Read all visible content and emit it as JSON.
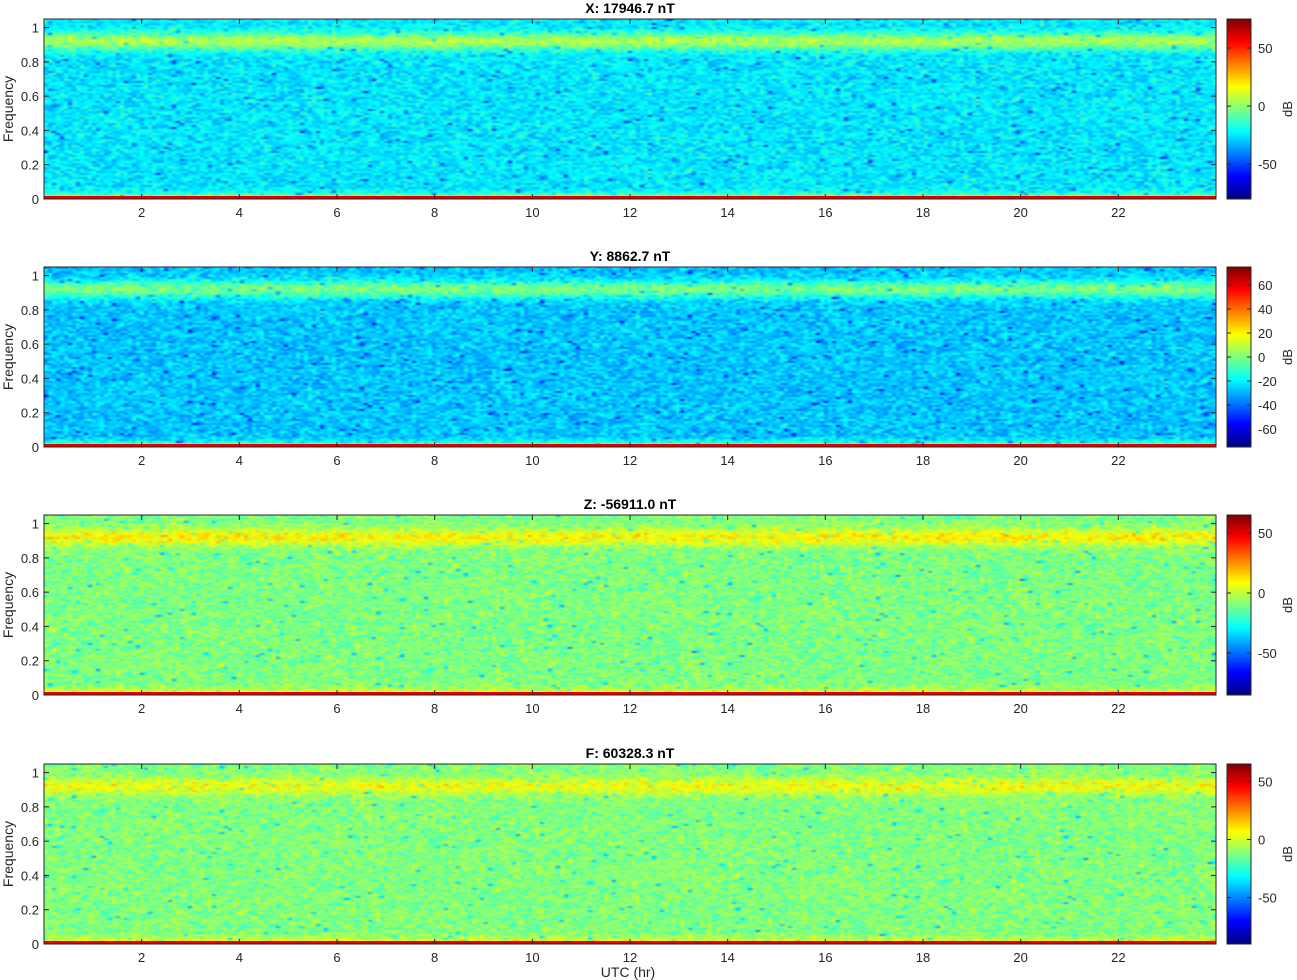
{
  "figure": {
    "xlabel": "UTC (hr)"
  },
  "chart_data": [
    {
      "type": "heatmap",
      "title": "X: 17946.7 nT",
      "xlabel": "",
      "ylabel": "Frequency",
      "colorbar_label": "dB",
      "colormap": "jet",
      "xlim": [
        0,
        24
      ],
      "ylim": [
        0,
        1.05
      ],
      "xticks": [
        2,
        4,
        6,
        8,
        10,
        12,
        14,
        16,
        18,
        20,
        22
      ],
      "yticks": [
        0,
        0.2,
        0.4,
        0.6,
        0.8,
        1
      ],
      "clim": [
        -80,
        75
      ],
      "cticks": [
        50,
        0,
        -50
      ],
      "background_db": -25,
      "band_0p9_db": 5,
      "low_freq_db": 60
    },
    {
      "type": "heatmap",
      "title": "Y: 8862.7 nT",
      "xlabel": "",
      "ylabel": "Frequency",
      "colorbar_label": "dB",
      "colormap": "jet",
      "xlim": [
        0,
        24
      ],
      "ylim": [
        0,
        1.05
      ],
      "xticks": [
        2,
        4,
        6,
        8,
        10,
        12,
        14,
        16,
        18,
        20,
        22
      ],
      "yticks": [
        0,
        0.2,
        0.4,
        0.6,
        0.8,
        1
      ],
      "clim": [
        -75,
        75
      ],
      "cticks": [
        60,
        40,
        20,
        0,
        -20,
        -40,
        -60
      ],
      "background_db": -27,
      "band_0p9_db": 0,
      "low_freq_db": 60
    },
    {
      "type": "heatmap",
      "title": "Z: -56911.0 nT",
      "xlabel": "",
      "ylabel": "Frequency",
      "colorbar_label": "dB",
      "colormap": "jet",
      "xlim": [
        0,
        24
      ],
      "ylim": [
        0,
        1.05
      ],
      "xticks": [
        2,
        4,
        6,
        8,
        10,
        12,
        14,
        16,
        18,
        20,
        22
      ],
      "yticks": [
        0,
        0.2,
        0.4,
        0.6,
        0.8,
        1
      ],
      "clim": [
        -85,
        65
      ],
      "cticks": [
        50,
        0,
        -50
      ],
      "background_db": -10,
      "band_0p9_db": 10,
      "low_freq_db": 50
    },
    {
      "type": "heatmap",
      "title": "F: 60328.3 nT",
      "xlabel": "",
      "ylabel": "Frequency",
      "colorbar_label": "dB",
      "colormap": "jet",
      "xlim": [
        0,
        24
      ],
      "ylim": [
        0,
        1.05
      ],
      "xticks": [
        2,
        4,
        6,
        8,
        10,
        12,
        14,
        16,
        18,
        20,
        22
      ],
      "yticks": [
        0,
        0.2,
        0.4,
        0.6,
        0.8,
        1
      ],
      "clim": [
        -90,
        65
      ],
      "cticks": [
        50,
        0,
        -50
      ],
      "background_db": -12,
      "band_0p9_db": 5,
      "low_freq_db": 50
    }
  ]
}
